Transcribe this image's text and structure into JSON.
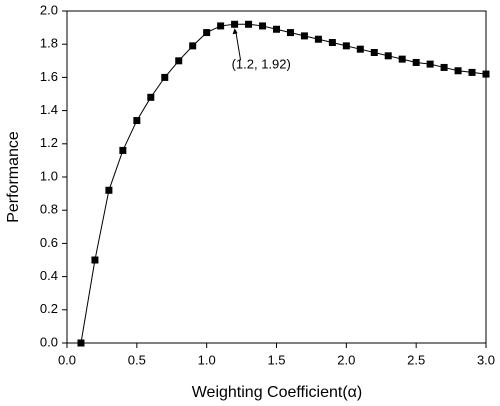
{
  "chart_data": {
    "type": "line",
    "x_label": "Weighting Coefficient(α)",
    "y_label": "Performance",
    "x": [
      0.1,
      0.2,
      0.3,
      0.4,
      0.5,
      0.6,
      0.7,
      0.8,
      0.9,
      1.0,
      1.1,
      1.2,
      1.3,
      1.4,
      1.5,
      1.6,
      1.7,
      1.8,
      1.9,
      2.0,
      2.1,
      2.2,
      2.3,
      2.4,
      2.5,
      2.6,
      2.7,
      2.8,
      2.9,
      3.0
    ],
    "series": [
      {
        "color": "#000000",
        "values": [
          0.0,
          0.5,
          0.92,
          1.16,
          1.34,
          1.48,
          1.6,
          1.7,
          1.79,
          1.87,
          1.91,
          1.92,
          1.92,
          1.91,
          1.89,
          1.87,
          1.85,
          1.83,
          1.81,
          1.79,
          1.77,
          1.75,
          1.73,
          1.71,
          1.69,
          1.68,
          1.66,
          1.64,
          1.63,
          1.62
        ]
      }
    ],
    "xlim": [
      0,
      3.0
    ],
    "ylim": [
      0,
      2.0
    ],
    "xticks": [
      {
        "value": 0,
        "label": "0.0"
      },
      0.5,
      {
        "value": 1,
        "label": "1.0"
      },
      1.5,
      {
        "value": 2,
        "label": "2.0"
      },
      2.5,
      {
        "value": 3,
        "label": "3.0"
      }
    ],
    "yticks": [
      {
        "value": 0,
        "label": "0.0"
      },
      0.2,
      0.4,
      0.6,
      0.8,
      {
        "value": 1,
        "label": "1.0"
      },
      1.2,
      1.4,
      1.6,
      1.8,
      {
        "value": 2,
        "label": "2.0"
      }
    ],
    "annotation": "(1.2, 1.92)"
  }
}
